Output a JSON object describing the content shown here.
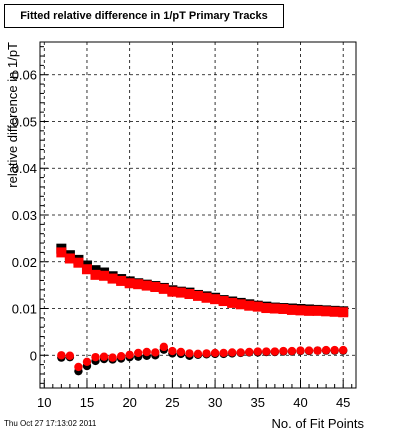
{
  "chart_data": {
    "type": "scatter",
    "title": "Fitted relative difference in 1/pT Primary Tracks",
    "xlabel": "No. of Fit Points",
    "ylabel": "relative difference in 1/pT",
    "xlim": [
      9.5,
      46.5
    ],
    "ylim": [
      -0.007,
      0.067
    ],
    "xticks": [
      10,
      15,
      20,
      25,
      30,
      35,
      40,
      45
    ],
    "yticks": [
      0,
      0.01,
      0.02,
      0.03,
      0.04,
      0.05,
      0.06
    ],
    "grid": true,
    "legend": "none",
    "series": [
      {
        "kind": "square",
        "color": "#000000",
        "x": [
          12,
          13,
          14,
          15,
          16,
          17,
          18,
          19,
          20,
          21,
          22,
          23,
          24,
          25,
          26,
          27,
          28,
          29,
          30,
          31,
          32,
          33,
          34,
          35,
          36,
          37,
          38,
          39,
          40,
          41,
          42,
          43,
          44,
          45
        ],
        "y": [
          0.0228,
          0.0214,
          0.0204,
          0.0192,
          0.0182,
          0.0177,
          0.0169,
          0.0163,
          0.0158,
          0.0154,
          0.0151,
          0.0148,
          0.0144,
          0.0139,
          0.0136,
          0.0134,
          0.0129,
          0.0126,
          0.0123,
          0.0118,
          0.0115,
          0.0112,
          0.0109,
          0.0106,
          0.0104,
          0.0102,
          0.0101,
          0.01,
          0.0099,
          0.0098,
          0.0097,
          0.0096,
          0.0095,
          0.0094
        ]
      },
      {
        "kind": "square",
        "color": "#ff0000",
        "x": [
          12,
          13,
          14,
          15,
          16,
          17,
          18,
          19,
          20,
          21,
          22,
          23,
          24,
          25,
          26,
          27,
          28,
          29,
          30,
          31,
          32,
          33,
          34,
          35,
          36,
          37,
          38,
          39,
          40,
          41,
          42,
          43,
          44,
          45
        ],
        "y": [
          0.022,
          0.0207,
          0.0198,
          0.0184,
          0.0172,
          0.017,
          0.0164,
          0.0159,
          0.0154,
          0.0152,
          0.0149,
          0.0146,
          0.0142,
          0.0136,
          0.0134,
          0.0131,
          0.0127,
          0.0123,
          0.012,
          0.0116,
          0.0112,
          0.0109,
          0.0106,
          0.0104,
          0.0101,
          0.01,
          0.0099,
          0.0097,
          0.0096,
          0.0095,
          0.0095,
          0.0094,
          0.0093,
          0.0092
        ]
      },
      {
        "kind": "circle",
        "color": "#000000",
        "x": [
          12,
          13,
          14,
          15,
          16,
          17,
          18,
          19,
          20,
          21,
          22,
          23,
          24,
          25,
          26,
          27,
          28,
          29,
          30,
          31,
          32,
          33,
          34,
          35,
          36,
          37,
          38,
          39,
          40,
          41,
          42,
          43,
          44,
          45
        ],
        "y": [
          -0.0005,
          -0.0004,
          -0.0034,
          -0.0023,
          -0.0012,
          -0.0008,
          -0.0009,
          -0.0007,
          -0.0004,
          -0.0003,
          -0.0001,
          0.0,
          0.0012,
          0.0004,
          0.0003,
          -0.0001,
          0.0001,
          0.0002,
          0.0003,
          0.0003,
          0.0004,
          0.0005,
          0.0006,
          0.0006,
          0.0007,
          0.0007,
          0.0008,
          0.0008,
          0.0009,
          0.0009,
          0.001,
          0.001,
          0.001,
          0.001
        ]
      },
      {
        "kind": "circle",
        "color": "#ff0000",
        "x": [
          12,
          13,
          14,
          15,
          16,
          17,
          18,
          19,
          20,
          21,
          22,
          23,
          24,
          25,
          26,
          27,
          28,
          29,
          30,
          31,
          32,
          33,
          34,
          35,
          36,
          37,
          38,
          39,
          40,
          41,
          42,
          43,
          44,
          45
        ],
        "y": [
          0.0,
          -0.0001,
          -0.0025,
          -0.0014,
          -0.0004,
          -0.0003,
          -0.0005,
          -0.0002,
          0.0001,
          0.0005,
          0.0007,
          0.0006,
          0.0018,
          0.0009,
          0.0007,
          0.0004,
          0.0003,
          0.0004,
          0.0005,
          0.0005,
          0.0006,
          0.0006,
          0.0007,
          0.0008,
          0.0008,
          0.0008,
          0.0009,
          0.0009,
          0.001,
          0.001,
          0.001,
          0.0011,
          0.0011,
          0.0011
        ]
      }
    ]
  },
  "footer": {
    "timestamp": "Thu Oct 27 17:13:02 2011"
  }
}
